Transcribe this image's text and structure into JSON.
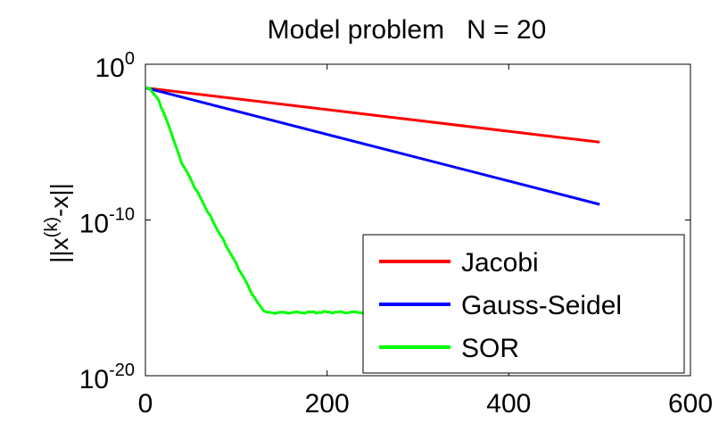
{
  "chart_data": {
    "type": "line",
    "title": "Model problem   N = 20",
    "xlabel": "",
    "ylabel": "||x(k)-x||",
    "ylabel_parts": {
      "pre": "||x",
      "sup": "(k)",
      "post": "-x||"
    },
    "xlim": [
      0,
      600
    ],
    "ylim": [
      1e-20,
      1
    ],
    "yscale": "log",
    "grid": false,
    "legend_position": "bottom-right",
    "x_ticks": [
      {
        "value": 0,
        "label": "0"
      },
      {
        "value": 200,
        "label": "200"
      },
      {
        "value": 400,
        "label": "400"
      },
      {
        "value": 600,
        "label": "600"
      }
    ],
    "y_ticks": [
      {
        "value": 1e-20,
        "base": "10",
        "exp": "-20"
      },
      {
        "value": 1e-10,
        "base": "10",
        "exp": "-10"
      },
      {
        "value": 1,
        "base": "10",
        "exp": "0"
      }
    ],
    "series": [
      {
        "name": "Jacobi",
        "color": "#ff0000",
        "points": [
          [
            1,
            0.03
          ],
          [
            500,
            1e-05
          ]
        ]
      },
      {
        "name": "Gauss-Seidel",
        "color": "#0000ff",
        "points": [
          [
            1,
            0.03
          ],
          [
            500,
            1e-09
          ]
        ]
      },
      {
        "name": "SOR",
        "color": "#00ff00",
        "points": [
          [
            1,
            0.03
          ],
          [
            5,
            0.025
          ],
          [
            10,
            0.012
          ],
          [
            15,
            0.004
          ],
          [
            20,
            0.0008
          ],
          [
            30,
            2e-05
          ],
          [
            40,
            5e-07
          ],
          [
            60,
            3e-09
          ],
          [
            80,
            2e-11
          ],
          [
            100,
            1.5e-13
          ],
          [
            120,
            1e-15
          ],
          [
            130,
            1.3e-16
          ],
          [
            140,
            1.1e-16
          ],
          [
            200,
            1.2e-16
          ],
          [
            260,
            1.15e-16
          ],
          [
            320,
            1.1e-16
          ],
          [
            380,
            1.2e-16
          ],
          [
            440,
            1.15e-16
          ],
          [
            500,
            1.1e-16
          ]
        ]
      }
    ]
  }
}
